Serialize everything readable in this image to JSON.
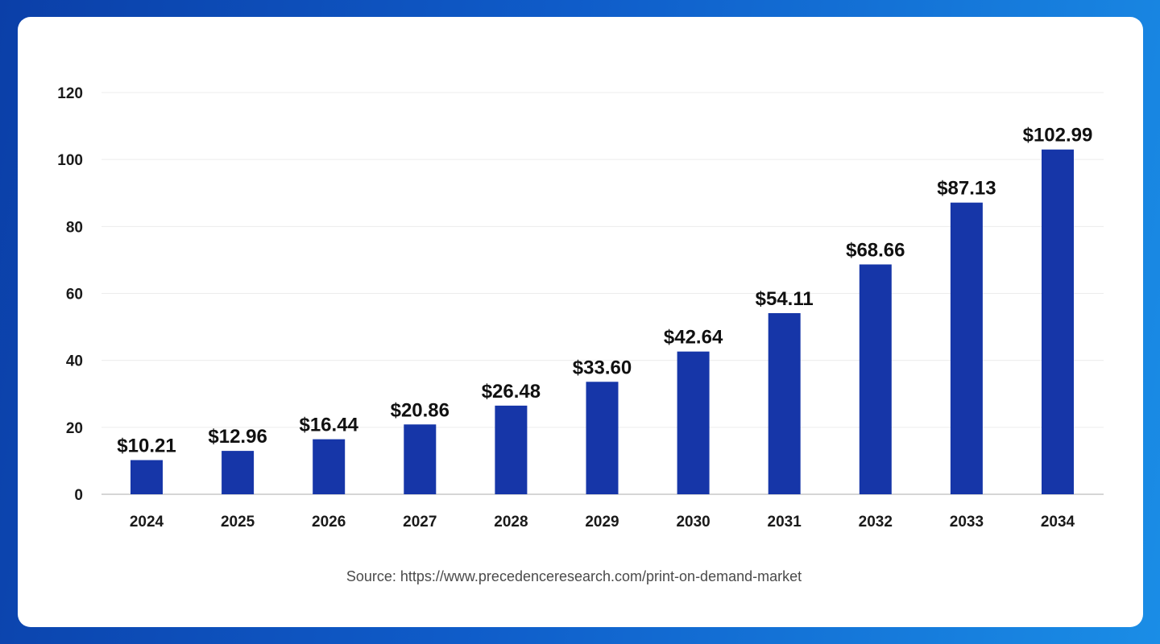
{
  "chart_data": {
    "type": "bar",
    "categories": [
      "2024",
      "2025",
      "2026",
      "2027",
      "2028",
      "2029",
      "2030",
      "2031",
      "2032",
      "2033",
      "2034"
    ],
    "values": [
      10.21,
      12.96,
      16.44,
      20.86,
      26.48,
      33.6,
      42.64,
      54.11,
      68.66,
      87.13,
      102.99
    ],
    "data_labels": [
      "$10.21",
      "$12.96",
      "$16.44",
      "$20.86",
      "$26.48",
      "$33.60",
      "$42.64",
      "$54.11",
      "$68.66",
      "$87.13",
      "$102.99"
    ],
    "yticks": [
      0,
      20,
      40,
      60,
      80,
      100,
      120
    ],
    "ylim": [
      0,
      120
    ],
    "title": "",
    "xlabel": "",
    "ylabel": "",
    "grid": true,
    "bar_color": "#1636a8"
  },
  "source": "Source: https://www.precedenceresearch.com/print-on-demand-market"
}
